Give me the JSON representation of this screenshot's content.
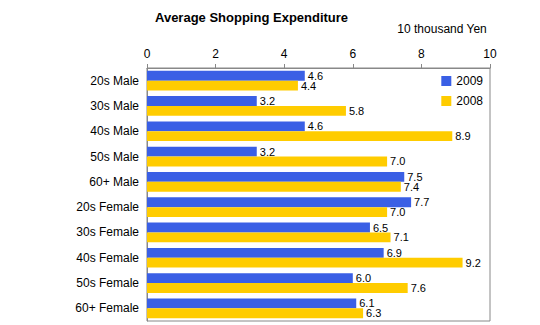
{
  "chart_data": {
    "type": "bar",
    "title": "Average Shopping Expenditure",
    "xlabel": "10 thousand Yen",
    "orientation": "horizontal",
    "categories": [
      "20s Male",
      "30s Male",
      "40s Male",
      "50s Male",
      "60+ Male",
      "20s Female",
      "30s Female",
      "40s Female",
      "50s Female",
      "60+ Female"
    ],
    "series": [
      {
        "name": "2009",
        "color": "#3a5fe5",
        "values": [
          4.6,
          3.2,
          4.6,
          3.2,
          7.5,
          7.7,
          6.5,
          6.9,
          6.0,
          6.1
        ],
        "value_labels": [
          "4.6",
          "3.2",
          "4.6",
          "3.2",
          "7.5",
          "7.7",
          "6.5",
          "6.9",
          "6.0",
          "6.1"
        ]
      },
      {
        "name": "2008",
        "color": "#ffcc00",
        "values": [
          4.4,
          5.8,
          8.9,
          7.0,
          7.4,
          7.0,
          7.1,
          9.2,
          7.6,
          6.3
        ],
        "value_labels": [
          "4.4",
          "5.8",
          "8.9",
          "7.0",
          "7.4",
          "7.0",
          "7.1",
          "9.2",
          "7.6",
          "6.3"
        ]
      }
    ],
    "xlim": [
      0,
      10
    ],
    "xticks": [
      0,
      2,
      4,
      6,
      8,
      10
    ],
    "grid": false,
    "legend": "top-right",
    "data_labels": true
  }
}
